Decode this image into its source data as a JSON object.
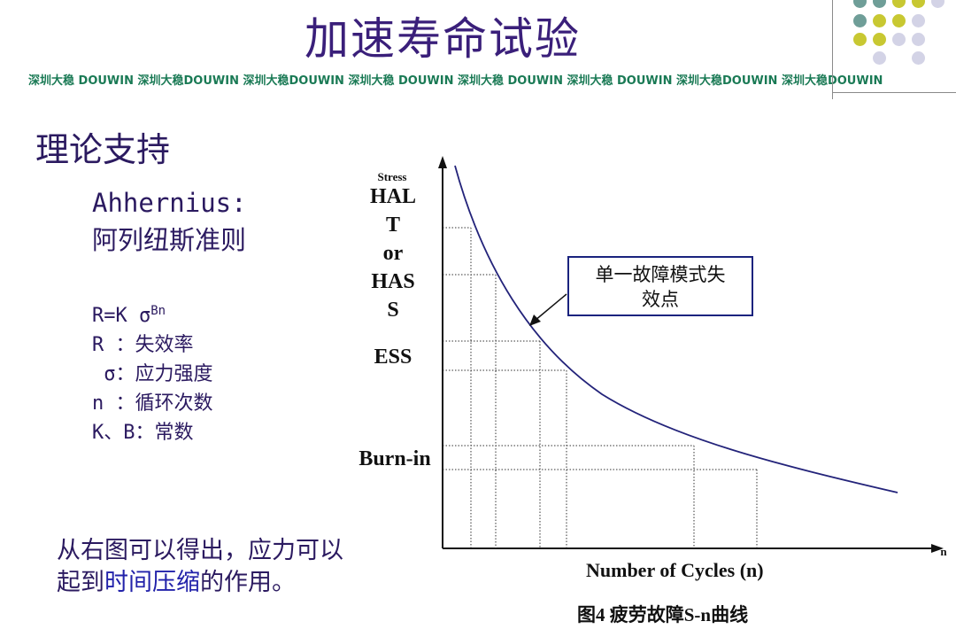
{
  "slide": {
    "title": "加速寿命试验",
    "watermark": "深圳大稳 DOUWIN 深圳大稳DOUWIN 深圳大稳DOUWIN 深圳大稳 DOUWIN 深圳大稳 DOUWIN 深圳大稳 DOUWIN 深圳大稳DOUWIN 深圳大稳DOUWIN",
    "section_title": "理论支持",
    "law_name_line1": "Ahhernius:",
    "law_name_line2": "阿列纽斯准则",
    "formula_base": "R=K σ",
    "formula_exp": "Bn",
    "def_r": "R ：失效率",
    "def_sigma": " σ：应力强度",
    "def_n": "n ：循环次数",
    "def_kb": "K、B：常数",
    "conclusion_line1": "从右图可以得出，应力可以",
    "conclusion_part1": "起到",
    "conclusion_highlight": "时间压缩",
    "conclusion_part2": "的作用。",
    "accent_colors": {
      "title": "#3a1f7a",
      "watermark": "#1a7a55",
      "dot_teal": "#6f9e98",
      "dot_yellow": "#c8c832",
      "dot_lavender": "#d3d3e6"
    }
  },
  "diagram": {
    "y_axis_caption": "Stress",
    "level_hal": "HAL",
    "level_hal2": "T",
    "level_or": "or",
    "level_has": "HAS",
    "level_has2": "S",
    "level_ess": "ESS",
    "level_burnin": "Burn-in",
    "callout_line1": "单一故障模式失",
    "callout_line2": "效点",
    "x_axis_label": "Number of Cycles (n)",
    "x_axis_symbol": "n",
    "caption": "图4 疲劳故障S-n曲线"
  }
}
